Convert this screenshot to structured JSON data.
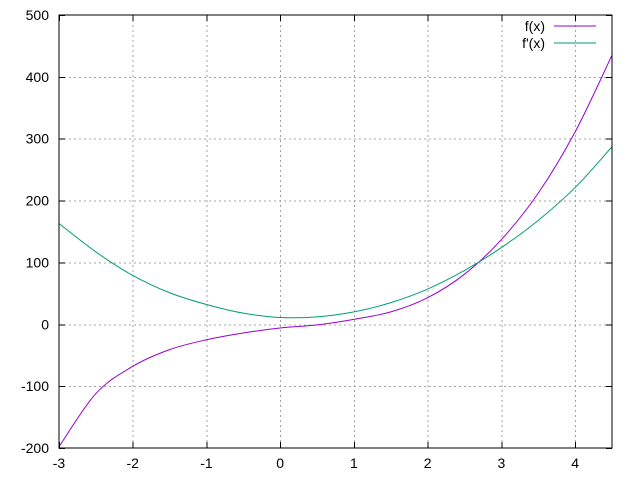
{
  "chart_data": {
    "type": "line",
    "title": "",
    "xlabel": "",
    "ylabel": "",
    "xlim": [
      -3,
      4.5
    ],
    "ylim": [
      -200,
      500
    ],
    "grid": true,
    "legend_position": "top-right",
    "x_ticks": [
      -3,
      -2,
      -1,
      0,
      1,
      2,
      3,
      4
    ],
    "x_tick_labels": [
      "-3",
      "-2",
      "-1",
      "0",
      "1",
      "2",
      "3",
      "4"
    ],
    "y_ticks": [
      -200,
      -100,
      0,
      100,
      200,
      300,
      400,
      500
    ],
    "y_tick_labels": [
      "-200",
      "-100",
      "0",
      "100",
      "200",
      "300",
      "400",
      "500"
    ],
    "x": [
      -3,
      -2.5,
      -2,
      -1.5,
      -1,
      -0.5,
      0,
      0.5,
      1,
      1.5,
      2,
      2.5,
      3,
      3.5,
      4,
      4.5
    ],
    "series": [
      {
        "name": "f(x)",
        "color": "#9400d3",
        "values": [
          -198,
          -112,
          -68,
          -41,
          -25,
          -14,
          -6,
          -1,
          8,
          20,
          43,
          81,
          137,
          212,
          311,
          435
        ]
      },
      {
        "name": "f'(x)",
        "color": "#009e73",
        "values": [
          163,
          117,
          79,
          51,
          32,
          18,
          11,
          12,
          20,
          35,
          57,
          87,
          124,
          168,
          221,
          287
        ]
      }
    ]
  }
}
